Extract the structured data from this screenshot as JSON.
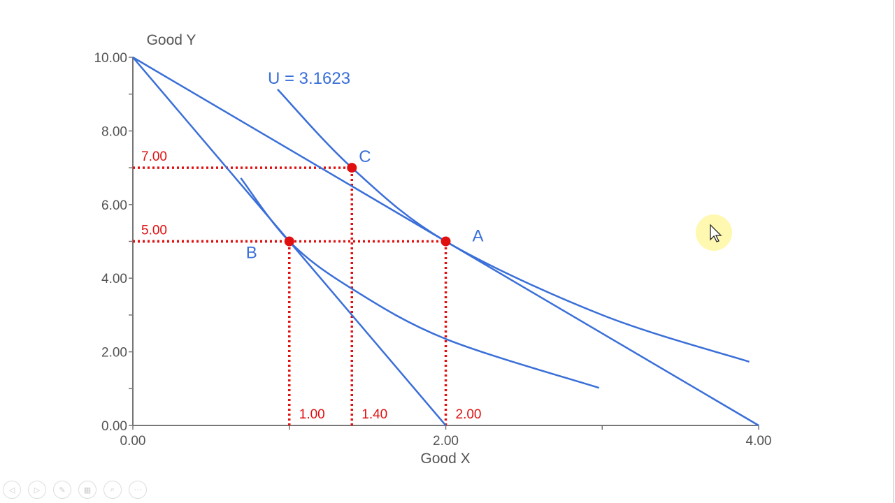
{
  "chart_data": {
    "type": "line",
    "xlabel": "Good X",
    "ylabel": "Good Y",
    "xlim": [
      0,
      4
    ],
    "ylim": [
      0,
      10
    ],
    "x_ticks": [
      0,
      1,
      2,
      3,
      4
    ],
    "x_tick_labels": [
      "0.00",
      "",
      "2.00",
      "",
      "4.00"
    ],
    "y_ticks": [
      0,
      1,
      2,
      3,
      4,
      5,
      6,
      7,
      8,
      9,
      10
    ],
    "y_tick_labels": [
      "0.00",
      "",
      "2.00",
      "",
      "4.00",
      "",
      "6.00",
      "",
      "8.00",
      "",
      "10.00"
    ],
    "grid": false,
    "line_color": "#3a6fd8",
    "guide_color": "#e01010",
    "budget_lines": [
      {
        "points": [
          [
            0,
            10
          ],
          [
            4,
            0
          ]
        ]
      },
      {
        "points": [
          [
            0,
            10
          ],
          [
            2,
            0
          ]
        ]
      }
    ],
    "indifference_curves": [
      {
        "label": "U = 3.1623",
        "points": [
          [
            0.925,
            9.13
          ],
          [
            1.4,
            7.0
          ],
          [
            2.0,
            5.0
          ],
          [
            3.0,
            3.0
          ],
          [
            3.94,
            1.73
          ]
        ]
      },
      {
        "points": [
          [
            0.69,
            6.72
          ],
          [
            1.0,
            5.0
          ],
          [
            1.39,
            3.74
          ],
          [
            2.0,
            2.35
          ],
          [
            2.98,
            1.02
          ]
        ]
      }
    ],
    "points": [
      {
        "label": "C",
        "x": 1.4,
        "y": 7.0
      },
      {
        "label": "B",
        "x": 1.0,
        "y": 5.0
      },
      {
        "label": "A",
        "x": 2.0,
        "y": 5.0
      }
    ],
    "guide_labels": {
      "y": [
        {
          "value": 7,
          "label": "7.00"
        },
        {
          "value": 5,
          "label": "5.00"
        }
      ],
      "x": [
        {
          "value": 1,
          "label": "1.00"
        },
        {
          "value": 1.4,
          "label": "1.40"
        },
        {
          "value": 2,
          "label": "2.00"
        }
      ]
    }
  },
  "toolbar": {
    "icons": [
      "previous-icon",
      "next-icon",
      "pen-icon",
      "slides-icon",
      "zoom-icon",
      "more-icon"
    ]
  }
}
